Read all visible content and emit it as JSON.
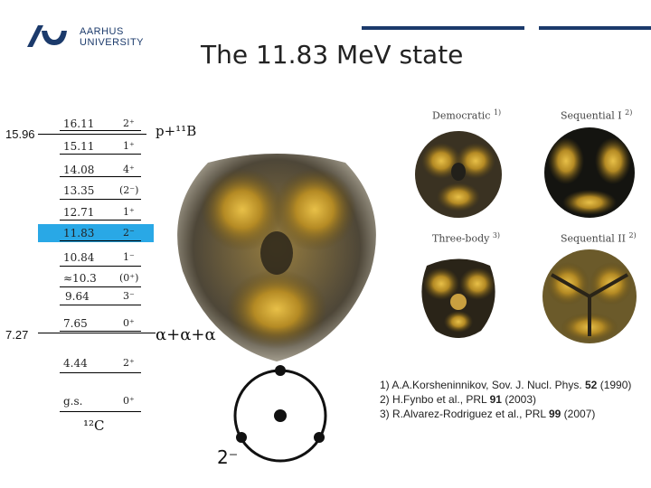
{
  "header": {
    "logo_line1": "AARHUS",
    "logo_line2": "UNIVERSITY",
    "brand_color": "#1b3a6b",
    "title": "The 11.83 MeV state"
  },
  "thresholds": {
    "upper": "15.96",
    "lower": "7.27"
  },
  "levels": [
    {
      "energy": "16.11",
      "jp": "2⁺"
    },
    {
      "energy": "15.11",
      "jp": "1⁺"
    },
    {
      "energy": "14.08",
      "jp": "4⁺"
    },
    {
      "energy": "13.35",
      "jp": "(2⁻)"
    },
    {
      "energy": "12.71",
      "jp": "1⁺"
    },
    {
      "energy": "11.83",
      "jp": "2⁻"
    },
    {
      "energy": "10.84",
      "jp": "1⁻"
    },
    {
      "energy": "≈10.3",
      "jp": "(0⁺)"
    },
    {
      "energy": "9.64",
      "jp": "3⁻"
    },
    {
      "energy": "7.65",
      "jp": "0⁺"
    },
    {
      "energy": "4.44",
      "jp": "2⁺"
    },
    {
      "energy": "g.s.",
      "jp": "0⁺"
    }
  ],
  "highlight_color": "#29a8e6",
  "nucleus": "¹²C",
  "channels": {
    "proton": "p+¹¹B",
    "alpha": "α+α+α"
  },
  "simulations": [
    {
      "label": "Democratic",
      "ref": "1)"
    },
    {
      "label": "Sequential I",
      "ref": "2)"
    },
    {
      "label": "Three-body",
      "ref": "3)"
    },
    {
      "label": "Sequential II",
      "ref": "2)"
    }
  ],
  "diagram_label": "2⁻",
  "references": [
    {
      "num": "1)",
      "text": "A.A.Korsheninnikov, Sov. J. Nucl. Phys. ",
      "bold": "52",
      "tail": " (1990)"
    },
    {
      "num": "2)",
      "text": "H.Fynbo et al., PRL ",
      "bold": "91",
      "tail": " (2003)"
    },
    {
      "num": "3)",
      "text": "R.Alvarez-Rodriguez et al., PRL ",
      "bold": "99",
      "tail": " (2007)"
    }
  ]
}
